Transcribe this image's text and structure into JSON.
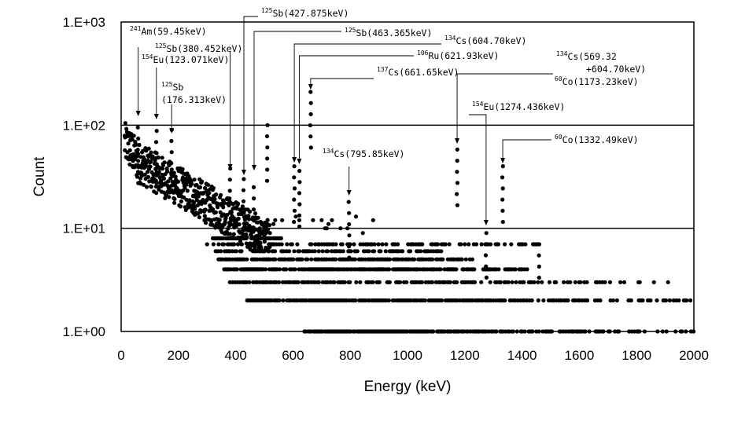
{
  "chart_data": {
    "type": "scatter",
    "title": "",
    "xlabel": "Energy (keV)",
    "ylabel": "Count",
    "x_scale": "linear",
    "y_scale": "log",
    "xlim": [
      0,
      2000
    ],
    "ylim": [
      1,
      1000
    ],
    "x_ticks": [
      "0",
      "200",
      "400",
      "600",
      "800",
      "1000",
      "1200",
      "1400",
      "1600",
      "1800",
      "2000"
    ],
    "y_ticks": [
      "1.E+00",
      "1.E+01",
      "1.E+02",
      "1.E+03"
    ],
    "grid": "horizontal major gridlines at decades",
    "legend": "none",
    "marker_color": "#000000",
    "series": [
      {
        "description_points": "dense gamma spectrum points; continuum decays from ~50 counts near 20 keV to ~10 counts near 450 keV, then quantized counts 1-8 out to 2000 keV",
        "peaks": [
          {
            "x": 59.45,
            "y": 95
          },
          {
            "x": 123.071,
            "y": 88
          },
          {
            "x": 176.313,
            "y": 90
          },
          {
            "x": 380.452,
            "y": 38
          },
          {
            "x": 427.875,
            "y": 30
          },
          {
            "x": 463.365,
            "y": 25
          },
          {
            "x": 510,
            "y": 100
          },
          {
            "x": 604.7,
            "y": 40
          },
          {
            "x": 621.93,
            "y": 36
          },
          {
            "x": 661.65,
            "y": 210
          },
          {
            "x": 795.85,
            "y": 18
          },
          {
            "x": 1173.23,
            "y": 58
          },
          {
            "x": 1274.436,
            "y": 9
          },
          {
            "x": 1332.49,
            "y": 40
          },
          {
            "x": 1460,
            "y": 7
          }
        ]
      }
    ],
    "annotations": [
      {
        "sup": "241",
        "text": "Am(59.45keV)",
        "x": 59.45
      },
      {
        "sup": "125",
        "text": "Sb(380.452keV)",
        "x": 380.452
      },
      {
        "sup": "154",
        "text": "Eu(123.071keV)",
        "x": 123.071
      },
      {
        "sup": "125",
        "text": "Sb",
        "line2": "(176.313keV)",
        "x": 176.313
      },
      {
        "sup": "125",
        "text": "Sb(427.875keV)",
        "x": 427.875
      },
      {
        "sup": "125",
        "text": "Sb(463.365keV)",
        "x": 463.365
      },
      {
        "sup": "134",
        "text": "Cs(604.70keV)",
        "x": 604.7
      },
      {
        "sup": "106",
        "text": "Ru(621.93keV)",
        "x": 621.93
      },
      {
        "sup": "137",
        "text": "Cs(661.65keV)",
        "x": 661.65
      },
      {
        "sup": "134",
        "text": "Cs(795.85keV)",
        "x": 795.85
      },
      {
        "sup": "134",
        "text": "Cs(569.32",
        "line2": "+604.70keV)",
        "x": 1173.23
      },
      {
        "sup": "60",
        "text": "Co(1173.23keV)",
        "x": 1173.23
      },
      {
        "sup": "154",
        "text": "Eu(1274.436keV)",
        "x": 1274.436
      },
      {
        "sup": "60",
        "text": "Co(1332.49keV)",
        "x": 1332.49
      }
    ]
  }
}
